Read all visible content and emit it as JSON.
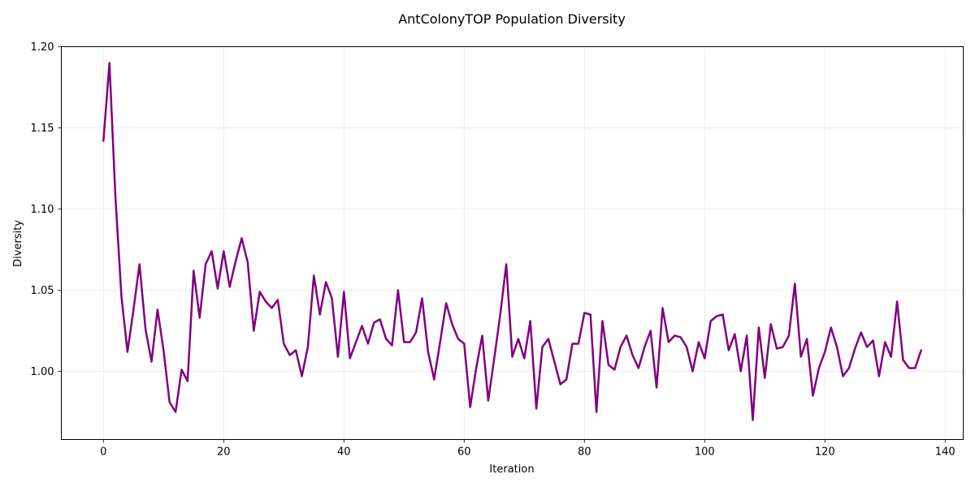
{
  "chart_data": {
    "type": "line",
    "title": "AntColonyTOP Population Diversity",
    "xlabel": "Iteration",
    "ylabel": "Diversity",
    "xlim": [
      -7,
      143
    ],
    "ylim": [
      0.958,
      1.2
    ],
    "xticks": [
      0,
      20,
      40,
      60,
      80,
      100,
      120,
      140
    ],
    "xtick_labels": [
      "0",
      "20",
      "40",
      "60",
      "80",
      "100",
      "120",
      "140"
    ],
    "yticks": [
      1.0,
      1.05,
      1.1,
      1.15,
      1.2
    ],
    "ytick_labels": [
      "1.00",
      "1.05",
      "1.10",
      "1.15",
      "1.20"
    ],
    "grid": true,
    "line_color": "#800080",
    "series": [
      {
        "x": [
          0,
          1,
          2,
          3,
          4,
          5,
          6,
          7,
          8,
          9,
          10,
          11,
          12,
          13,
          14,
          15,
          16,
          17,
          18,
          19,
          20,
          21,
          22,
          23,
          24,
          25,
          26,
          27,
          28,
          29,
          30,
          31,
          32,
          33,
          34,
          35,
          36,
          37,
          38,
          39,
          40,
          41,
          42,
          43,
          44,
          45,
          46,
          47,
          48,
          49,
          50,
          51,
          52,
          53,
          54,
          55,
          56,
          57,
          58,
          59,
          60,
          61,
          62,
          63,
          64,
          65,
          66,
          67,
          68,
          69,
          70,
          71,
          72,
          73,
          74,
          75,
          76,
          77,
          78,
          79,
          80,
          81,
          82,
          83,
          84,
          85,
          86,
          87,
          88,
          89,
          90,
          91,
          92,
          93,
          94,
          95,
          96,
          97,
          98,
          99,
          100,
          101,
          102,
          103,
          104,
          105,
          106,
          107,
          108,
          109,
          110,
          111,
          112,
          113,
          114,
          115,
          116,
          117,
          118,
          119,
          120,
          121,
          122,
          123,
          124,
          125,
          126,
          127,
          128,
          129,
          130,
          131,
          132,
          133,
          134,
          135,
          136
        ],
        "values": [
          1.142,
          1.19,
          1.107,
          1.046,
          1.012,
          1.038,
          1.066,
          1.026,
          1.006,
          1.038,
          1.013,
          0.981,
          0.975,
          1.001,
          0.994,
          1.062,
          1.033,
          1.066,
          1.074,
          1.051,
          1.074,
          1.052,
          1.068,
          1.082,
          1.067,
          1.025,
          1.049,
          1.043,
          1.039,
          1.044,
          1.017,
          1.01,
          1.013,
          0.997,
          1.015,
          1.059,
          1.035,
          1.055,
          1.045,
          1.009,
          1.049,
          1.008,
          1.018,
          1.028,
          1.017,
          1.03,
          1.032,
          1.02,
          1.016,
          1.05,
          1.018,
          1.018,
          1.024,
          1.045,
          1.012,
          0.995,
          1.018,
          1.042,
          1.029,
          1.02,
          1.017,
          0.978,
          1.002,
          1.022,
          0.982,
          1.008,
          1.035,
          1.066,
          1.009,
          1.02,
          1.008,
          1.031,
          0.977,
          1.015,
          1.02,
          1.006,
          0.992,
          0.995,
          1.017,
          1.017,
          1.036,
          1.035,
          0.975,
          1.031,
          1.004,
          1.001,
          1.015,
          1.022,
          1.01,
          1.002,
          1.015,
          1.025,
          0.99,
          1.039,
          1.018,
          1.022,
          1.021,
          1.015,
          1.0,
          1.018,
          1.008,
          1.031,
          1.034,
          1.035,
          1.013,
          1.023,
          1.0,
          1.022,
          0.97,
          1.027,
          0.996,
          1.029,
          1.014,
          1.015,
          1.022,
          1.054,
          1.009,
          1.02,
          0.985,
          1.002,
          1.012,
          1.027,
          1.015,
          0.997,
          1.002,
          1.014,
          1.024,
          1.015,
          1.019,
          0.997,
          1.018,
          1.009,
          1.043,
          1.007,
          1.002,
          1.002,
          1.013
        ]
      }
    ]
  }
}
